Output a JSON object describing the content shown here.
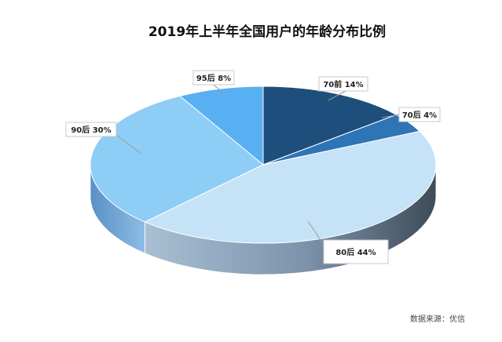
{
  "chart_data": {
    "type": "pie",
    "title": "2019年上半年全国用户的年龄分布比例",
    "categories": [
      "70前",
      "70后",
      "80后",
      "90后",
      "95后"
    ],
    "values": [
      14,
      4,
      44,
      30,
      8
    ],
    "labels": [
      "70前 14%",
      "70后 4%",
      "80后 44%",
      "90后 30%",
      "95后 8%"
    ],
    "colors": [
      "#1d4e7c",
      "#2e75b6",
      "#c5e2f7",
      "#8ecdf6",
      "#58b0f2"
    ],
    "style": "3d-exploded-none",
    "legend": "none"
  },
  "source": "数据来源：优信"
}
